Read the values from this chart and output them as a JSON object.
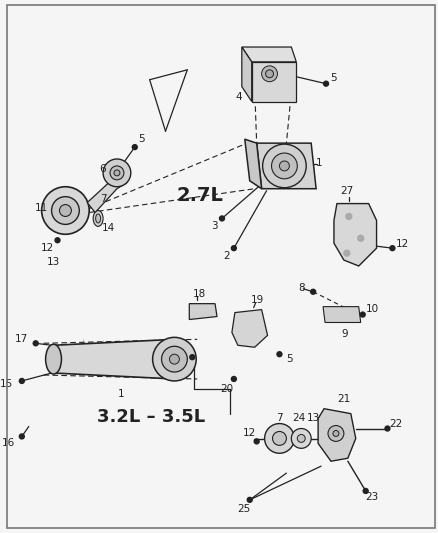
{
  "bg_color": "#f5f5f5",
  "line_color": "#222222",
  "label_fontsize": 7.5,
  "bold_label_fontsize": 13,
  "section_27L": "2.7L",
  "section_32L": "3.2L – 3.5L",
  "figsize": [
    4.38,
    5.33
  ],
  "dpi": 100,
  "border_color": "#555555",
  "part_fill": "#d8d8d8",
  "part_fill2": "#c8c8c8",
  "part_fill3": "#e8e8e8"
}
